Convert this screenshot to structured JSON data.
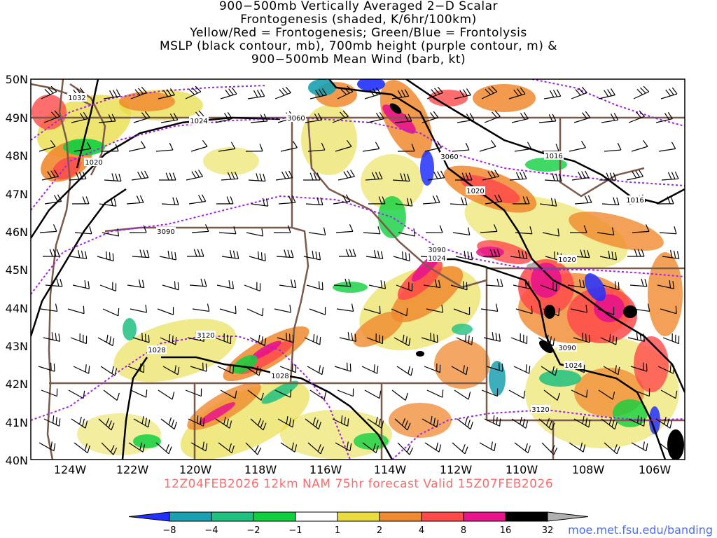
{
  "title": {
    "lines": [
      "900−500mb Vertically Averaged 2−D Scalar",
      "Frontogenesis (shaded, K/6hr/100km)",
      "Yellow/Red = Frontogenesis;  Green/Blue = Frontolysis",
      "MSLP (black contour, mb), 700mb height (purple contour, m) &",
      "900−500mb Mean Wind (barb, kt)"
    ]
  },
  "map": {
    "lat_labels": [
      "50N",
      "49N",
      "48N",
      "47N",
      "46N",
      "45N",
      "44N",
      "43N",
      "42N",
      "41N",
      "40N"
    ],
    "lon_labels": [
      "124W",
      "122W",
      "120W",
      "118W",
      "116W",
      "114W",
      "112W",
      "110W",
      "108W",
      "106W"
    ],
    "mslp_labels": [
      "1032",
      "1024",
      "1020",
      "1020",
      "1016",
      "1016",
      "1024",
      "1020",
      "1024",
      "1028",
      "1028"
    ],
    "height_labels": [
      "3060",
      "3060",
      "3090",
      "3090",
      "3120",
      "3090",
      "3120"
    ],
    "colors": {
      "mslp": "#000000",
      "height": "#a020f0",
      "borders": "#7a5a4a",
      "barbs": "#000000"
    }
  },
  "footer": {
    "run_text": "12Z04FEB2026 12km NAM 75hr forecast Valid 15Z07FEB2026"
  },
  "colorbar": {
    "labels": [
      "−8",
      "−4",
      "−2",
      "−1",
      "1",
      "2",
      "4",
      "8",
      "16",
      "32"
    ],
    "colors": [
      "#2030ff",
      "#1aa0b0",
      "#20c080",
      "#10d040",
      "#ffffff",
      "#e8dc40",
      "#f08a30",
      "#ff4a4a",
      "#e8148a",
      "#000000",
      "#b0b0b0"
    ]
  },
  "credit": "moe.met.fsu.edu/banding"
}
